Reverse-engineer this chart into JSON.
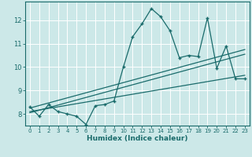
{
  "title": "",
  "xlabel": "Humidex (Indice chaleur)",
  "bg_color": "#cce8e8",
  "line_color": "#1a6b6b",
  "grid_color": "#ffffff",
  "xlim": [
    -0.5,
    23.5
  ],
  "ylim": [
    7.5,
    12.8
  ],
  "yticks": [
    8,
    9,
    10,
    11,
    12
  ],
  "xticks": [
    0,
    1,
    2,
    3,
    4,
    5,
    6,
    7,
    8,
    9,
    10,
    11,
    12,
    13,
    14,
    15,
    16,
    17,
    18,
    19,
    20,
    21,
    22,
    23
  ],
  "data_x": [
    0,
    1,
    2,
    3,
    4,
    5,
    6,
    7,
    8,
    9,
    10,
    11,
    12,
    13,
    14,
    15,
    16,
    17,
    18,
    19,
    20,
    21,
    22,
    23
  ],
  "data_y": [
    8.3,
    7.9,
    8.4,
    8.1,
    8.0,
    7.9,
    7.55,
    8.35,
    8.4,
    8.55,
    10.0,
    11.3,
    11.85,
    12.5,
    12.15,
    11.55,
    10.4,
    10.5,
    10.45,
    12.1,
    9.95,
    10.9,
    9.5,
    9.5
  ],
  "trend1_x": [
    0,
    23
  ],
  "trend1_y": [
    8.25,
    10.75
  ],
  "trend2_x": [
    0,
    23
  ],
  "trend2_y": [
    8.1,
    9.65
  ],
  "trend3_x": [
    0,
    23
  ],
  "trend3_y": [
    8.05,
    10.55
  ]
}
